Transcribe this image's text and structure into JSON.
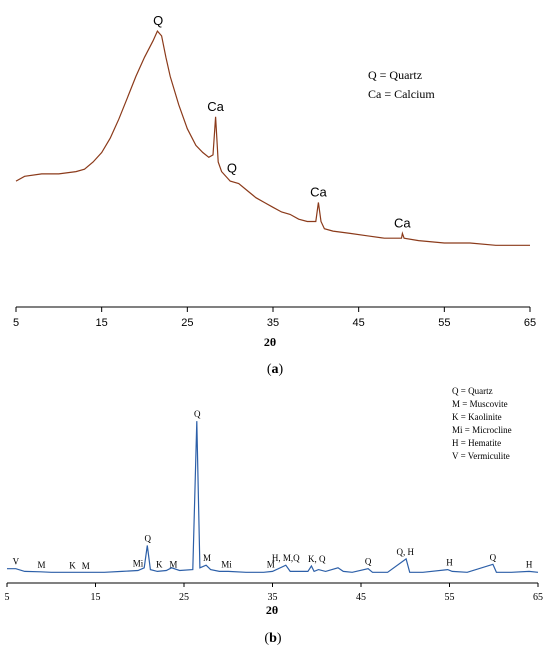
{
  "chart_data": [
    {
      "panel": "a",
      "panel_label": "a",
      "type": "line",
      "xlabel": "2θ",
      "xlim": [
        5,
        65
      ],
      "x_ticks": [
        5,
        15,
        25,
        35,
        45,
        55,
        65
      ],
      "x_tick_labels": [
        "5",
        "15",
        "25",
        "35",
        "45",
        "55",
        "65"
      ],
      "colors": {
        "line": "#8B3A1A",
        "accent": "#2E8B57"
      },
      "legend": [
        "Q = Quartz",
        "Ca = Calcium"
      ],
      "series": [
        {
          "values": [
            [
              5,
              0.34
            ],
            [
              6,
              0.36
            ],
            [
              8,
              0.37
            ],
            [
              10,
              0.37
            ],
            [
              12,
              0.38
            ],
            [
              13,
              0.39
            ],
            [
              14,
              0.42
            ],
            [
              15,
              0.46
            ],
            [
              16,
              0.52
            ],
            [
              17,
              0.6
            ],
            [
              18,
              0.69
            ],
            [
              19,
              0.78
            ],
            [
              20,
              0.86
            ],
            [
              21,
              0.93
            ],
            [
              21.5,
              0.97
            ],
            [
              22,
              0.95
            ],
            [
              22.5,
              0.86
            ],
            [
              23,
              0.78
            ],
            [
              24,
              0.66
            ],
            [
              25,
              0.56
            ],
            [
              26,
              0.49
            ],
            [
              26.8,
              0.46
            ],
            [
              27.5,
              0.44
            ],
            [
              28,
              0.45
            ],
            [
              28.3,
              0.61
            ],
            [
              28.6,
              0.42
            ],
            [
              29,
              0.38
            ],
            [
              30,
              0.34
            ],
            [
              31,
              0.33
            ],
            [
              32,
              0.3
            ],
            [
              33,
              0.27
            ],
            [
              34,
              0.25
            ],
            [
              35,
              0.23
            ],
            [
              36,
              0.21
            ],
            [
              37,
              0.2
            ],
            [
              38,
              0.18
            ],
            [
              39,
              0.17
            ],
            [
              40,
              0.17
            ],
            [
              40.3,
              0.25
            ],
            [
              40.6,
              0.17
            ],
            [
              41,
              0.14
            ],
            [
              42,
              0.13
            ],
            [
              44,
              0.12
            ],
            [
              46,
              0.11
            ],
            [
              48,
              0.1
            ],
            [
              50,
              0.1
            ],
            [
              50.1,
              0.12
            ],
            [
              50.3,
              0.1
            ],
            [
              52,
              0.09
            ],
            [
              55,
              0.08
            ],
            [
              58,
              0.08
            ],
            [
              61,
              0.07
            ],
            [
              63,
              0.07
            ],
            [
              65,
              0.07
            ]
          ]
        }
      ],
      "annotations": [
        {
          "text": "Q",
          "x": 21.6,
          "y": 0.97
        },
        {
          "text": "Ca",
          "x": 28.3,
          "y": 0.61
        },
        {
          "text": "Q",
          "x": 30.2,
          "y": 0.35
        },
        {
          "text": "Ca",
          "x": 40.3,
          "y": 0.25
        },
        {
          "text": "Ca",
          "x": 50.1,
          "y": 0.12
        }
      ]
    },
    {
      "panel": "b",
      "panel_label": "b",
      "type": "line",
      "xlabel": "2θ",
      "xlim": [
        5,
        65
      ],
      "x_ticks": [
        5,
        15,
        25,
        35,
        45,
        55,
        65
      ],
      "x_tick_labels": [
        "5",
        "15",
        "25",
        "35",
        "45",
        "55",
        "65"
      ],
      "colors": {
        "line": "#2C5FA8"
      },
      "legend": [
        "Q = Quartz",
        "M = Muscovite",
        "K = Kaolinite",
        "Mi = Microcline",
        "H = Hematite",
        "V = Vermiculite"
      ],
      "series": [
        {
          "values": [
            [
              5,
              0.035
            ],
            [
              6,
              0.035
            ],
            [
              7,
              0.02
            ],
            [
              8.8,
              0.018
            ],
            [
              10,
              0.015
            ],
            [
              12,
              0.015
            ],
            [
              14,
              0.015
            ],
            [
              16,
              0.015
            ],
            [
              18,
              0.02
            ],
            [
              19.8,
              0.025
            ],
            [
              20.5,
              0.04
            ],
            [
              20.85,
              0.165
            ],
            [
              21.2,
              0.03
            ],
            [
              22,
              0.02
            ],
            [
              23,
              0.025
            ],
            [
              23.6,
              0.04
            ],
            [
              24.5,
              0.025
            ],
            [
              26,
              0.03
            ],
            [
              26.45,
              0.86
            ],
            [
              26.8,
              0.04
            ],
            [
              27.5,
              0.055
            ],
            [
              28,
              0.03
            ],
            [
              29,
              0.02
            ],
            [
              30,
              0.02
            ],
            [
              32,
              0.015
            ],
            [
              34,
              0.015
            ],
            [
              35,
              0.02
            ],
            [
              36.5,
              0.055
            ],
            [
              37,
              0.02
            ],
            [
              38,
              0.02
            ],
            [
              39,
              0.02
            ],
            [
              39.4,
              0.05
            ],
            [
              39.7,
              0.02
            ],
            [
              40.2,
              0.03
            ],
            [
              41,
              0.02
            ],
            [
              42.4,
              0.04
            ],
            [
              43,
              0.02
            ],
            [
              44,
              0.015
            ],
            [
              45.8,
              0.035
            ],
            [
              46.3,
              0.015
            ],
            [
              48,
              0.015
            ],
            [
              50.1,
              0.09
            ],
            [
              50.5,
              0.015
            ],
            [
              52,
              0.015
            ],
            [
              54.8,
              0.03
            ],
            [
              55.3,
              0.02
            ],
            [
              57,
              0.015
            ],
            [
              59.9,
              0.06
            ],
            [
              60.3,
              0.015
            ],
            [
              62,
              0.015
            ],
            [
              64,
              0.02
            ],
            [
              65,
              0.015
            ]
          ]
        }
      ],
      "annotations": [
        {
          "text": "Q",
          "x": 26.5,
          "y": 0.86
        },
        {
          "text": "Q",
          "x": 20.9,
          "y": 0.165
        },
        {
          "text": "V",
          "x": 6,
          "y": 0.035
        },
        {
          "text": "M",
          "x": 8.9,
          "y": 0.018
        },
        {
          "text": "K",
          "x": 12.4,
          "y": 0.015
        },
        {
          "text": "M",
          "x": 13.9,
          "y": 0.01
        },
        {
          "text": "Mi",
          "x": 19.8,
          "y": 0.025
        },
        {
          "text": "K",
          "x": 22.2,
          "y": 0.02
        },
        {
          "text": "M",
          "x": 23.8,
          "y": 0.02
        },
        {
          "text": "M",
          "x": 27.6,
          "y": 0.055
        },
        {
          "text": "Mi",
          "x": 29.8,
          "y": 0.02
        },
        {
          "text": "M",
          "x": 34.8,
          "y": 0.02
        },
        {
          "text": "H, M,Q",
          "x": 36.5,
          "y": 0.055
        },
        {
          "text": "K, Q",
          "x": 40.0,
          "y": 0.05
        },
        {
          "text": "Q",
          "x": 45.8,
          "y": 0.035
        },
        {
          "text": "Q, H",
          "x": 50.0,
          "y": 0.09
        },
        {
          "text": "H",
          "x": 55.0,
          "y": 0.03
        },
        {
          "text": "Q",
          "x": 59.9,
          "y": 0.06
        },
        {
          "text": "H",
          "x": 64.0,
          "y": 0.02
        }
      ]
    }
  ]
}
